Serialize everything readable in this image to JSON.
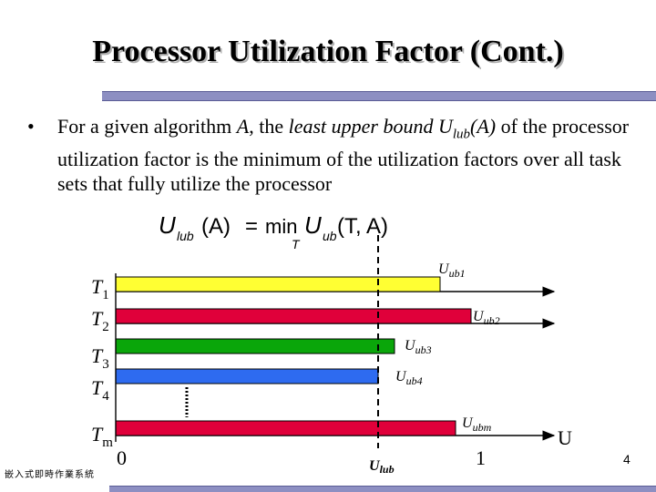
{
  "slide": {
    "title": "Processor Utilization Factor (Cont.)",
    "bullet_intro": "For a given algorithm ",
    "bullet_var": "A",
    "bullet_mid": ", the ",
    "bullet_term": "least upper bound U",
    "bullet_sub": "lub",
    "bullet_arg": "(A)",
    "bullet_rest": " of the processor utilization factor is the minimum of the utilization factors over all task sets that fully utilize the processor",
    "footer": "嵌入式即時作業系統",
    "page_number": "4"
  },
  "formula": {
    "lhs_main": "U",
    "lhs_sub": "lub",
    "lhs_arg": "(A)",
    "equals": "=",
    "min": "min",
    "min_under": "T",
    "rhs_main": "U",
    "rhs_sub": "ub",
    "rhs_arg": "(T, A)"
  },
  "diagram": {
    "tasks": [
      {
        "task": "T",
        "sub": "1",
        "ub": "U",
        "ub_sub": "ub1",
        "color": "#ffff33"
      },
      {
        "task": "T",
        "sub": "2",
        "ub": "U",
        "ub_sub": "ub2",
        "color": "#e0003a"
      },
      {
        "task": "T",
        "sub": "3",
        "ub": "U",
        "ub_sub": "ub3",
        "color": "#0aa60a"
      },
      {
        "task": "T",
        "sub": "4",
        "ub": "U",
        "ub_sub": "ub4",
        "color": "#2e6bf0"
      },
      {
        "task": "T",
        "sub": "m",
        "ub": "U",
        "ub_sub": "ubm",
        "color": "#e0003a"
      }
    ],
    "axis_zero": "0",
    "axis_lub_main": "U",
    "axis_lub_sub": "lub",
    "axis_one": "1",
    "axis_label": "U"
  }
}
